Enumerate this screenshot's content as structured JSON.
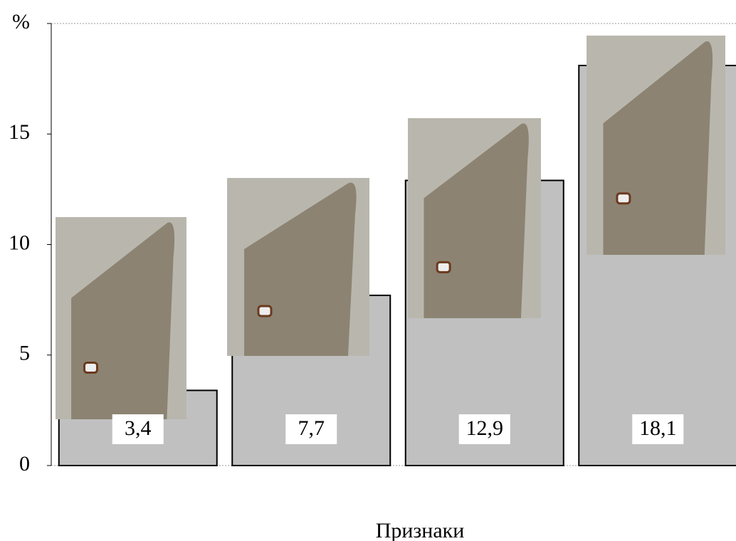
{
  "chart_data": {
    "type": "bar",
    "categories": [
      null,
      null,
      null,
      null
    ],
    "values": [
      3.4,
      7.7,
      12.9,
      18.1
    ],
    "value_labels": [
      "3,4",
      "7,7",
      "12,9",
      "18,1"
    ],
    "color": "#c0c0c0",
    "ylim": [
      0,
      20
    ],
    "yticks": [
      0,
      5,
      10,
      15,
      {
        "value": 20,
        "label": "%"
      }
    ],
    "x_label": "Признаки"
  }
}
